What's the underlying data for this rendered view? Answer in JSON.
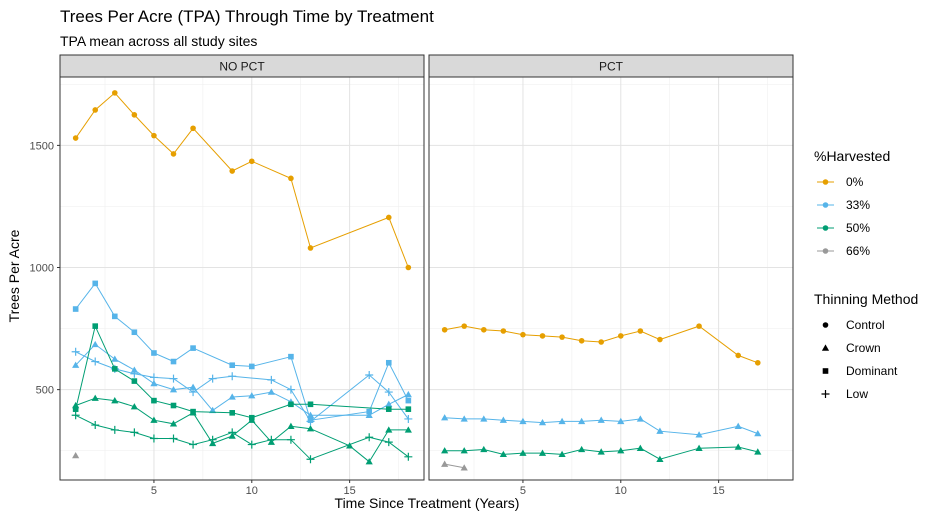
{
  "chart_data": {
    "type": "line",
    "title": "Trees Per Acre (TPA) Through Time by Treatment",
    "subtitle": "TPA mean across all study sites",
    "xlabel": "Time Since Treatment (Years)",
    "ylabel": "Trees Per Acre",
    "xlim": [
      0.2,
      18.8
    ],
    "ylim": [
      130,
      1780
    ],
    "x_ticks": [
      5,
      10,
      15
    ],
    "y_ticks": [
      500,
      1000,
      1500
    ],
    "facets": [
      "NO PCT",
      "PCT"
    ],
    "legend_color_title": "%Harvested",
    "legend_color": [
      {
        "label": "0%",
        "color": "#E69F00"
      },
      {
        "label": "33%",
        "color": "#56B4E9"
      },
      {
        "label": "50%",
        "color": "#009E73"
      },
      {
        "label": "66%",
        "color": "#999999"
      }
    ],
    "legend_shape_title": "Thinning Method",
    "legend_shape": [
      {
        "label": "Control",
        "shape": "circle"
      },
      {
        "label": "Crown",
        "shape": "triangle"
      },
      {
        "label": "Dominant",
        "shape": "square"
      },
      {
        "label": "Low",
        "shape": "plus"
      }
    ],
    "series": [
      {
        "facet": "NO PCT",
        "harvest": "0%",
        "method": "Control",
        "x": [
          1,
          2,
          3,
          4,
          5,
          6,
          7,
          9,
          10,
          12,
          13,
          17,
          18
        ],
        "y": [
          1530,
          1645,
          1715,
          1625,
          1540,
          1465,
          1570,
          1395,
          1435,
          1365,
          1080,
          1205,
          1000
        ]
      },
      {
        "facet": "NO PCT",
        "harvest": "33%",
        "method": "Dominant",
        "x": [
          1,
          2,
          3,
          4,
          5,
          6,
          7,
          9,
          10,
          12,
          13,
          16,
          17,
          18
        ],
        "y": [
          830,
          935,
          800,
          735,
          650,
          615,
          670,
          600,
          595,
          635,
          375,
          410,
          610,
          455
        ]
      },
      {
        "facet": "NO PCT",
        "harvest": "33%",
        "method": "Crown",
        "x": [
          1,
          2,
          3,
          4,
          5,
          6,
          7,
          8,
          9,
          10,
          11,
          12,
          13,
          16,
          17,
          18
        ],
        "y": [
          600,
          685,
          625,
          580,
          525,
          500,
          510,
          415,
          470,
          475,
          490,
          450,
          395,
          395,
          440,
          480
        ]
      },
      {
        "facet": "NO PCT",
        "harvest": "33%",
        "method": "Low",
        "x": [
          1,
          2,
          3,
          4,
          5,
          6,
          7,
          8,
          9,
          11,
          12,
          13,
          16,
          17,
          18
        ],
        "y": [
          655,
          615,
          585,
          565,
          550,
          545,
          490,
          545,
          555,
          540,
          500,
          370,
          560,
          490,
          380
        ]
      },
      {
        "facet": "NO PCT",
        "harvest": "50%",
        "method": "Dominant",
        "x": [
          1,
          2,
          3,
          4,
          5,
          6,
          7,
          9,
          10,
          12,
          13,
          17,
          18
        ],
        "y": [
          420,
          760,
          585,
          535,
          455,
          435,
          410,
          405,
          385,
          440,
          440,
          420,
          420
        ]
      },
      {
        "facet": "NO PCT",
        "harvest": "50%",
        "method": "Crown",
        "x": [
          1,
          2,
          3,
          4,
          5,
          6,
          7,
          8,
          9,
          10,
          11,
          12,
          13,
          15,
          16,
          17,
          18
        ],
        "y": [
          435,
          465,
          455,
          430,
          375,
          360,
          405,
          280,
          310,
          375,
          285,
          350,
          340,
          270,
          205,
          335,
          335
        ]
      },
      {
        "facet": "NO PCT",
        "harvest": "50%",
        "method": "Low",
        "x": [
          1,
          2,
          3,
          4,
          5,
          6,
          7,
          8,
          9,
          10,
          11,
          12,
          13,
          16,
          17,
          18
        ],
        "y": [
          395,
          355,
          335,
          325,
          300,
          300,
          275,
          295,
          325,
          275,
          295,
          295,
          215,
          305,
          285,
          225
        ]
      },
      {
        "facet": "NO PCT",
        "harvest": "66%",
        "method": "Crown",
        "x": [
          1
        ],
        "y": [
          230
        ]
      },
      {
        "facet": "PCT",
        "harvest": "0%",
        "method": "Control",
        "x": [
          1,
          2,
          3,
          4,
          5,
          6,
          7,
          8,
          9,
          10,
          11,
          12,
          14,
          16,
          17
        ],
        "y": [
          745,
          760,
          745,
          740,
          725,
          720,
          715,
          700,
          695,
          720,
          740,
          705,
          760,
          640,
          610
        ]
      },
      {
        "facet": "PCT",
        "harvest": "33%",
        "method": "Crown",
        "x": [
          1,
          2,
          3,
          4,
          5,
          6,
          7,
          8,
          9,
          10,
          11,
          12,
          14,
          16,
          17
        ],
        "y": [
          385,
          380,
          380,
          375,
          370,
          365,
          370,
          370,
          375,
          370,
          380,
          330,
          315,
          350,
          320
        ]
      },
      {
        "facet": "PCT",
        "harvest": "50%",
        "method": "Crown",
        "x": [
          1,
          2,
          3,
          4,
          5,
          6,
          7,
          8,
          9,
          10,
          11,
          12,
          14,
          16,
          17
        ],
        "y": [
          250,
          250,
          255,
          235,
          240,
          240,
          235,
          255,
          245,
          250,
          260,
          215,
          260,
          265,
          245
        ]
      },
      {
        "facet": "PCT",
        "harvest": "66%",
        "method": "Crown",
        "x": [
          1,
          2
        ],
        "y": [
          195,
          180
        ]
      }
    ]
  }
}
